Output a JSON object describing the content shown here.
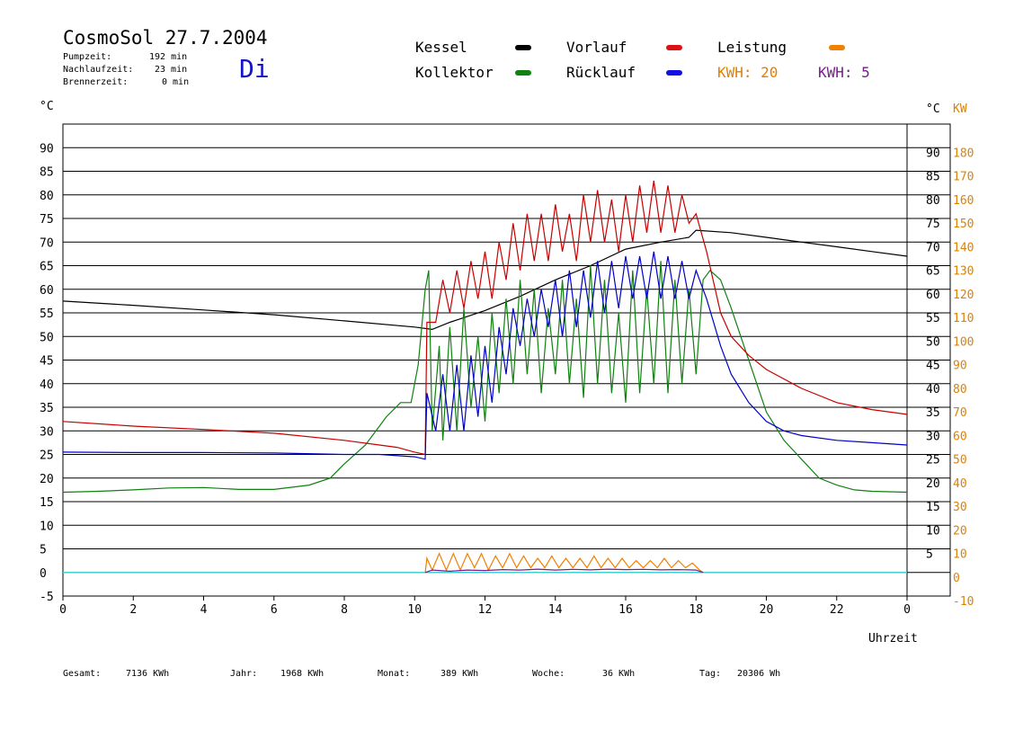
{
  "header": {
    "title": "CosmoSol 27.7.2004",
    "day": "Di",
    "stats": [
      {
        "label": "Pumpzeit:",
        "value": "192 min"
      },
      {
        "label": "Nachlaufzeit:",
        "value": "23 min"
      },
      {
        "label": "Brennerzeit:",
        "value": "0 min"
      }
    ]
  },
  "legend": {
    "kessel": "Kessel",
    "kollektor": "Kollektor",
    "vorlauf": "Vorlauf",
    "ruecklauf": "Rücklauf",
    "leistung": "Leistung",
    "kwh1": "KWH: 20",
    "kwh2": "KWH: 5"
  },
  "colors": {
    "kessel": "#000000",
    "kollektor": "#108010",
    "vorlauf": "#c80000",
    "ruecklauf": "#0000c8",
    "leistung": "#f08000",
    "kwh2": "#7a1a8c",
    "baseline": "#40d0d0",
    "orange_axis": "#e08000"
  },
  "footer": [
    {
      "label": "Gesamt:",
      "value": "7136 KWh"
    },
    {
      "label": "Jahr:",
      "value": "1968 KWh"
    },
    {
      "label": "Monat:",
      "value": "389 KWh"
    },
    {
      "label": "Woche:",
      "value": "36 KWh"
    },
    {
      "label": "Tag:",
      "value": "20306 Wh"
    }
  ],
  "chart_data": {
    "type": "line",
    "title": "CosmoSol 27.7.2004",
    "xlabel": "Uhrzeit",
    "xlim": [
      0,
      24
    ],
    "x_ticks": [
      "0",
      "2",
      "4",
      "6",
      "8",
      "10",
      "12",
      "14",
      "16",
      "18",
      "20",
      "22",
      "0"
    ],
    "ylabel_left": "°C",
    "ylabel_right": "°C",
    "ylabel_right2": "KW",
    "ylim": [
      -5,
      95
    ],
    "y_ticks_left": [
      "90",
      "85",
      "80",
      "75",
      "70",
      "65",
      "60",
      "55",
      "50",
      "45",
      "40",
      "35",
      "30",
      "25",
      "20",
      "15",
      "10",
      "5",
      "0",
      "-5"
    ],
    "y_ticks_right": [
      "90",
      "85",
      "80",
      "75",
      "70",
      "65",
      "60",
      "55",
      "50",
      "45",
      "40",
      "35",
      "30",
      "25",
      "20",
      "15",
      "10",
      "5"
    ],
    "y_ticks_kw": [
      "180",
      "170",
      "160",
      "150",
      "140",
      "130",
      "120",
      "110",
      "100",
      "90",
      "80",
      "70",
      "60",
      "50",
      "40",
      "30",
      "20",
      "10",
      "0",
      "-10"
    ],
    "series": [
      {
        "name": "Kessel",
        "color": "#000000",
        "points": [
          [
            0,
            57.5
          ],
          [
            2,
            56.6
          ],
          [
            4,
            55.6
          ],
          [
            6,
            54.6
          ],
          [
            8,
            53.3
          ],
          [
            10,
            52
          ],
          [
            10.5,
            51.5
          ],
          [
            11,
            53
          ],
          [
            12,
            55.5
          ],
          [
            13,
            58.5
          ],
          [
            14,
            62
          ],
          [
            15,
            65
          ],
          [
            16,
            68.5
          ],
          [
            17,
            70
          ],
          [
            17.8,
            71
          ],
          [
            18,
            72.5
          ],
          [
            19,
            72
          ],
          [
            20,
            71
          ],
          [
            21,
            70
          ],
          [
            22,
            69
          ],
          [
            23,
            68
          ],
          [
            24,
            67
          ]
        ]
      },
      {
        "name": "Kollektor",
        "color": "#108010",
        "points": [
          [
            0,
            17
          ],
          [
            1,
            17.2
          ],
          [
            2,
            17.5
          ],
          [
            3,
            17.9
          ],
          [
            4,
            18
          ],
          [
            5,
            17.6
          ],
          [
            6,
            17.6
          ],
          [
            7,
            18.5
          ],
          [
            7.6,
            20
          ],
          [
            8,
            23
          ],
          [
            8.6,
            27
          ],
          [
            9.2,
            33
          ],
          [
            9.6,
            36
          ],
          [
            9.9,
            36
          ],
          [
            10.1,
            44
          ],
          [
            10.3,
            60
          ],
          [
            10.4,
            64
          ],
          [
            10.5,
            30
          ],
          [
            10.7,
            48
          ],
          [
            10.8,
            28
          ],
          [
            11,
            52
          ],
          [
            11.2,
            30
          ],
          [
            11.4,
            56
          ],
          [
            11.6,
            35
          ],
          [
            11.8,
            50
          ],
          [
            12,
            32
          ],
          [
            12.2,
            55
          ],
          [
            12.4,
            38
          ],
          [
            12.6,
            58
          ],
          [
            12.8,
            40
          ],
          [
            13,
            62
          ],
          [
            13.2,
            42
          ],
          [
            13.4,
            60
          ],
          [
            13.6,
            38
          ],
          [
            13.8,
            56
          ],
          [
            14,
            42
          ],
          [
            14.2,
            62
          ],
          [
            14.4,
            40
          ],
          [
            14.6,
            58
          ],
          [
            14.8,
            37
          ],
          [
            15,
            65
          ],
          [
            15.2,
            40
          ],
          [
            15.4,
            62
          ],
          [
            15.6,
            38
          ],
          [
            15.8,
            55
          ],
          [
            16,
            36
          ],
          [
            16.2,
            64
          ],
          [
            16.4,
            38
          ],
          [
            16.6,
            60
          ],
          [
            16.8,
            40
          ],
          [
            17,
            66
          ],
          [
            17.2,
            38
          ],
          [
            17.4,
            62
          ],
          [
            17.6,
            40
          ],
          [
            17.8,
            60
          ],
          [
            18,
            42
          ],
          [
            18.2,
            62
          ],
          [
            18.4,
            64
          ],
          [
            18.7,
            62
          ],
          [
            19,
            56
          ],
          [
            19.5,
            45
          ],
          [
            20,
            34
          ],
          [
            20.5,
            28
          ],
          [
            21,
            24
          ],
          [
            21.5,
            20
          ],
          [
            22,
            18.5
          ],
          [
            22.5,
            17.5
          ],
          [
            23,
            17.2
          ],
          [
            24,
            17
          ]
        ]
      },
      {
        "name": "Vorlauf",
        "color": "#c80000",
        "points": [
          [
            0,
            32
          ],
          [
            2,
            31
          ],
          [
            4,
            30.3
          ],
          [
            6,
            29.5
          ],
          [
            8,
            28
          ],
          [
            9,
            27
          ],
          [
            9.5,
            26.5
          ],
          [
            10,
            25.5
          ],
          [
            10.3,
            25
          ],
          [
            10.35,
            53
          ],
          [
            10.6,
            53
          ],
          [
            10.8,
            62
          ],
          [
            11,
            55
          ],
          [
            11.2,
            64
          ],
          [
            11.4,
            56
          ],
          [
            11.6,
            66
          ],
          [
            11.8,
            58
          ],
          [
            12,
            68
          ],
          [
            12.2,
            58
          ],
          [
            12.4,
            70
          ],
          [
            12.6,
            62
          ],
          [
            12.8,
            74
          ],
          [
            13,
            64
          ],
          [
            13.2,
            76
          ],
          [
            13.4,
            66
          ],
          [
            13.6,
            76
          ],
          [
            13.8,
            66
          ],
          [
            14,
            78
          ],
          [
            14.2,
            68
          ],
          [
            14.4,
            76
          ],
          [
            14.6,
            66
          ],
          [
            14.8,
            80
          ],
          [
            15,
            70
          ],
          [
            15.2,
            81
          ],
          [
            15.4,
            70
          ],
          [
            15.6,
            79
          ],
          [
            15.8,
            68
          ],
          [
            16,
            80
          ],
          [
            16.2,
            70
          ],
          [
            16.4,
            82
          ],
          [
            16.6,
            72
          ],
          [
            16.8,
            83
          ],
          [
            17,
            72
          ],
          [
            17.2,
            82
          ],
          [
            17.4,
            72
          ],
          [
            17.6,
            80
          ],
          [
            17.8,
            74
          ],
          [
            18,
            76
          ],
          [
            18.3,
            68
          ],
          [
            18.7,
            55
          ],
          [
            19,
            50
          ],
          [
            19.5,
            46
          ],
          [
            20,
            43
          ],
          [
            21,
            39
          ],
          [
            22,
            36
          ],
          [
            23,
            34.5
          ],
          [
            24,
            33.5
          ]
        ]
      },
      {
        "name": "Rücklauf",
        "color": "#0000c8",
        "points": [
          [
            0,
            25.5
          ],
          [
            2,
            25.4
          ],
          [
            4,
            25.4
          ],
          [
            6,
            25.3
          ],
          [
            8,
            25
          ],
          [
            9,
            25
          ],
          [
            10,
            24.5
          ],
          [
            10.3,
            24
          ],
          [
            10.35,
            38
          ],
          [
            10.6,
            30
          ],
          [
            10.8,
            42
          ],
          [
            11,
            30
          ],
          [
            11.2,
            44
          ],
          [
            11.4,
            30
          ],
          [
            11.6,
            46
          ],
          [
            11.8,
            33
          ],
          [
            12,
            48
          ],
          [
            12.2,
            36
          ],
          [
            12.4,
            52
          ],
          [
            12.6,
            42
          ],
          [
            12.8,
            56
          ],
          [
            13,
            48
          ],
          [
            13.2,
            58
          ],
          [
            13.4,
            50
          ],
          [
            13.6,
            60
          ],
          [
            13.8,
            52
          ],
          [
            14,
            62
          ],
          [
            14.2,
            50
          ],
          [
            14.4,
            64
          ],
          [
            14.6,
            52
          ],
          [
            14.8,
            64
          ],
          [
            15,
            54
          ],
          [
            15.2,
            66
          ],
          [
            15.4,
            55
          ],
          [
            15.6,
            66
          ],
          [
            15.8,
            56
          ],
          [
            16,
            67
          ],
          [
            16.2,
            58
          ],
          [
            16.4,
            67
          ],
          [
            16.6,
            58
          ],
          [
            16.8,
            68
          ],
          [
            17,
            58
          ],
          [
            17.2,
            67
          ],
          [
            17.4,
            58
          ],
          [
            17.6,
            66
          ],
          [
            17.8,
            58
          ],
          [
            18,
            64
          ],
          [
            18.3,
            58
          ],
          [
            18.7,
            48
          ],
          [
            19,
            42
          ],
          [
            19.5,
            36
          ],
          [
            20,
            32
          ],
          [
            20.5,
            30
          ],
          [
            21,
            29
          ],
          [
            22,
            28
          ],
          [
            23,
            27.5
          ],
          [
            24,
            27
          ]
        ]
      }
    ],
    "power_series": [
      {
        "name": "Leistung",
        "color": "#f08000",
        "points": [
          [
            10.3,
            0
          ],
          [
            10.35,
            6
          ],
          [
            10.5,
            1
          ],
          [
            10.7,
            8
          ],
          [
            10.9,
            1
          ],
          [
            11.1,
            8
          ],
          [
            11.3,
            1
          ],
          [
            11.5,
            8
          ],
          [
            11.7,
            2
          ],
          [
            11.9,
            8
          ],
          [
            12.1,
            1
          ],
          [
            12.3,
            7
          ],
          [
            12.5,
            2
          ],
          [
            12.7,
            8
          ],
          [
            12.9,
            2
          ],
          [
            13.1,
            7
          ],
          [
            13.3,
            2
          ],
          [
            13.5,
            6
          ],
          [
            13.7,
            2
          ],
          [
            13.9,
            7
          ],
          [
            14.1,
            2
          ],
          [
            14.3,
            6
          ],
          [
            14.5,
            2
          ],
          [
            14.7,
            6
          ],
          [
            14.9,
            2
          ],
          [
            15.1,
            7
          ],
          [
            15.3,
            2
          ],
          [
            15.5,
            6
          ],
          [
            15.7,
            2
          ],
          [
            15.9,
            6
          ],
          [
            16.1,
            2
          ],
          [
            16.3,
            5
          ],
          [
            16.5,
            2
          ],
          [
            16.7,
            5
          ],
          [
            16.9,
            2
          ],
          [
            17.1,
            6
          ],
          [
            17.3,
            2
          ],
          [
            17.5,
            5
          ],
          [
            17.7,
            2
          ],
          [
            17.9,
            4
          ],
          [
            18.1,
            1
          ],
          [
            18.2,
            0
          ]
        ]
      },
      {
        "name": "KWH: 5",
        "color": "#7a1a8c",
        "points": [
          [
            10.3,
            0
          ],
          [
            10.5,
            1
          ],
          [
            11,
            0.5
          ],
          [
            11.5,
            1
          ],
          [
            12,
            0.8
          ],
          [
            12.5,
            1.2
          ],
          [
            13,
            1
          ],
          [
            13.5,
            1.4
          ],
          [
            14,
            1
          ],
          [
            14.5,
            1.3
          ],
          [
            15,
            1.1
          ],
          [
            15.5,
            1.4
          ],
          [
            16,
            1.2
          ],
          [
            16.5,
            1.3
          ],
          [
            17,
            1.1
          ],
          [
            17.5,
            1.2
          ],
          [
            18,
            1
          ],
          [
            18.2,
            0
          ]
        ]
      }
    ]
  }
}
